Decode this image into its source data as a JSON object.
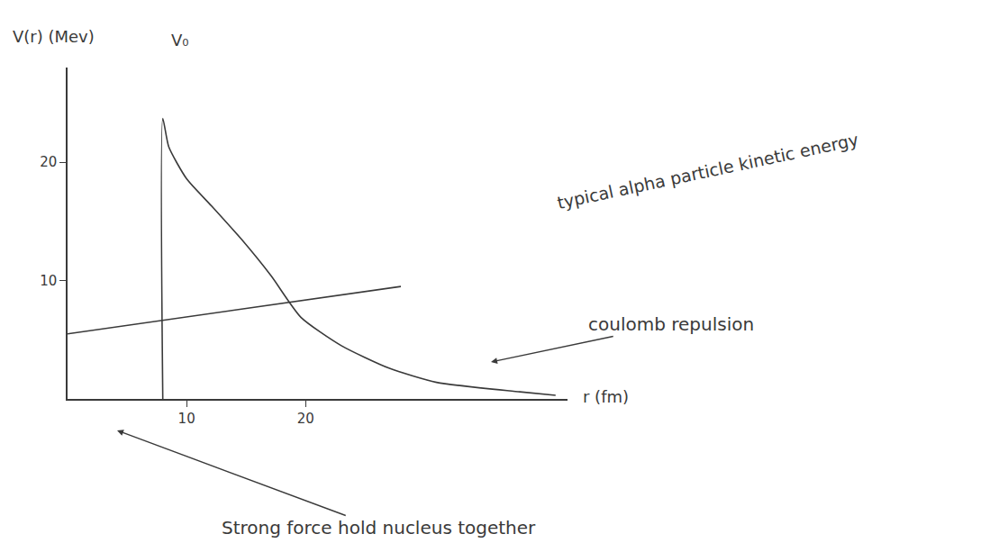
{
  "chart_data": {
    "type": "line",
    "x_label": "r (fm)",
    "y_label": "V(r) (Mev)",
    "xlim": [
      0,
      42
    ],
    "ylim": [
      0,
      28
    ],
    "xticks": [
      10,
      20
    ],
    "yticks": [
      10,
      20
    ],
    "grid": false,
    "color": "#3a3a3a",
    "series": [
      {
        "x": [
          8,
          8,
          8.5,
          10,
          12.1,
          14.6,
          17.1,
          19.6,
          23,
          27,
          31,
          38,
          41
        ],
        "values": [
          0,
          23.7,
          21.3,
          18.6,
          16.3,
          13.5,
          10.4,
          6.9,
          4.5,
          2.6,
          1.4,
          0.6,
          0.3
        ]
      },
      {
        "x": [
          0,
          28
        ],
        "values": [
          5.5,
          9.5
        ]
      }
    ],
    "annotations": [
      "V₀",
      "typical alpha particle kinetic energy",
      "coulomb repulsion",
      "Strong force hold nucleus together"
    ]
  }
}
